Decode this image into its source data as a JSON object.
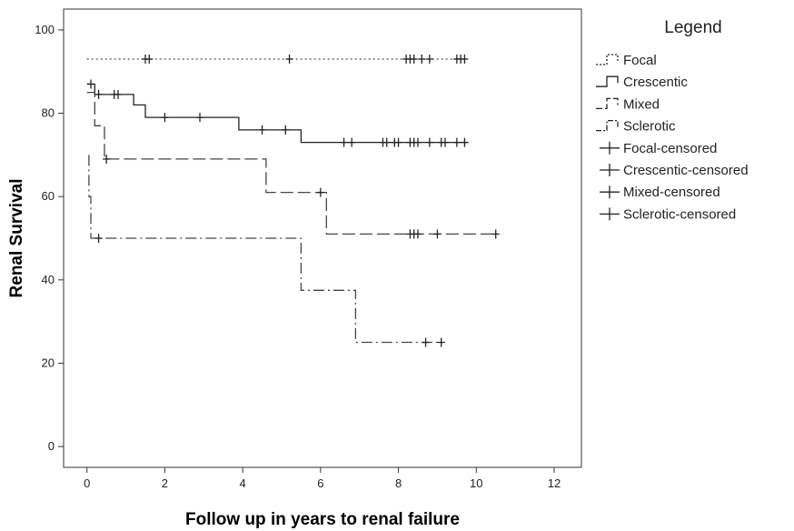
{
  "chart_data": {
    "type": "line",
    "chart_kind": "kaplan-meier-survival",
    "title": "",
    "xlabel": "Follow up in years to renal failure",
    "ylabel": "Renal Survival",
    "xlim": [
      -0.6,
      12.7
    ],
    "ylim": [
      -5,
      105
    ],
    "xticks": [
      0,
      2,
      4,
      6,
      8,
      10,
      12
    ],
    "yticks": [
      0,
      20,
      40,
      60,
      80,
      100
    ],
    "grid": false,
    "legend": {
      "title": "Legend",
      "placement": "right",
      "entries": [
        {
          "label": "Focal",
          "kind": "line",
          "dash": "dotted"
        },
        {
          "label": "Crescentic",
          "kind": "line",
          "dash": "solid"
        },
        {
          "label": "Mixed",
          "kind": "line",
          "dash": "dashed"
        },
        {
          "label": "Sclerotic",
          "kind": "line",
          "dash": "dashdot"
        },
        {
          "label": "Focal-censored",
          "kind": "censor"
        },
        {
          "label": "Crescentic-censored",
          "kind": "censor"
        },
        {
          "label": "Mixed-censored",
          "kind": "censor"
        },
        {
          "label": "Sclerotic-censored",
          "kind": "censor"
        }
      ]
    },
    "series": [
      {
        "name": "Focal",
        "dash": "dotted",
        "color": "#555555",
        "steps": [
          [
            0,
            93
          ],
          [
            9.8,
            93
          ]
        ],
        "censored": [
          [
            1.5,
            93
          ],
          [
            1.6,
            93
          ],
          [
            5.2,
            93
          ],
          [
            8.2,
            93
          ],
          [
            8.3,
            93
          ],
          [
            8.4,
            93
          ],
          [
            8.6,
            93
          ],
          [
            8.8,
            93
          ],
          [
            9.5,
            93
          ],
          [
            9.6,
            93
          ],
          [
            9.7,
            93
          ]
        ]
      },
      {
        "name": "Crescentic",
        "dash": "solid",
        "color": "#222222",
        "steps": [
          [
            0,
            87
          ],
          [
            0.2,
            87
          ],
          [
            0.2,
            84.5
          ],
          [
            1.2,
            84.5
          ],
          [
            1.2,
            82
          ],
          [
            1.5,
            82
          ],
          [
            1.5,
            79
          ],
          [
            3.9,
            79
          ],
          [
            3.9,
            76
          ],
          [
            5.5,
            76
          ],
          [
            5.5,
            73
          ],
          [
            9.8,
            73
          ]
        ],
        "censored": [
          [
            0.1,
            87
          ],
          [
            0.3,
            84.5
          ],
          [
            0.7,
            84.5
          ],
          [
            0.8,
            84.5
          ],
          [
            2.0,
            79
          ],
          [
            2.9,
            79
          ],
          [
            4.5,
            76
          ],
          [
            5.1,
            76
          ],
          [
            6.6,
            73
          ],
          [
            6.8,
            73
          ],
          [
            7.6,
            73
          ],
          [
            7.7,
            73
          ],
          [
            7.9,
            73
          ],
          [
            8.0,
            73
          ],
          [
            8.3,
            73
          ],
          [
            8.4,
            73
          ],
          [
            8.5,
            73
          ],
          [
            8.8,
            73
          ],
          [
            9.1,
            73
          ],
          [
            9.2,
            73
          ],
          [
            9.5,
            73
          ],
          [
            9.7,
            73
          ]
        ]
      },
      {
        "name": "Mixed",
        "dash": "dashed",
        "color": "#444444",
        "steps": [
          [
            0,
            85
          ],
          [
            0.2,
            85
          ],
          [
            0.2,
            77
          ],
          [
            0.45,
            77
          ],
          [
            0.45,
            69
          ],
          [
            4.6,
            69
          ],
          [
            4.6,
            61
          ],
          [
            6.15,
            61
          ],
          [
            6.15,
            51
          ],
          [
            10.5,
            51
          ]
        ],
        "censored": [
          [
            0.5,
            69
          ],
          [
            6.0,
            61
          ],
          [
            8.3,
            51
          ],
          [
            8.4,
            51
          ],
          [
            8.5,
            51
          ],
          [
            9.0,
            51
          ],
          [
            10.5,
            51
          ]
        ]
      },
      {
        "name": "Sclerotic",
        "dash": "dashdot",
        "color": "#444444",
        "steps": [
          [
            0.05,
            70
          ],
          [
            0.05,
            60
          ],
          [
            0.1,
            60
          ],
          [
            0.1,
            50
          ],
          [
            5.5,
            50
          ],
          [
            5.5,
            37.5
          ],
          [
            6.9,
            37.5
          ],
          [
            6.9,
            25
          ],
          [
            9.1,
            25
          ]
        ],
        "censored": [
          [
            0.3,
            50
          ],
          [
            8.7,
            25
          ],
          [
            9.1,
            25
          ]
        ]
      }
    ]
  }
}
